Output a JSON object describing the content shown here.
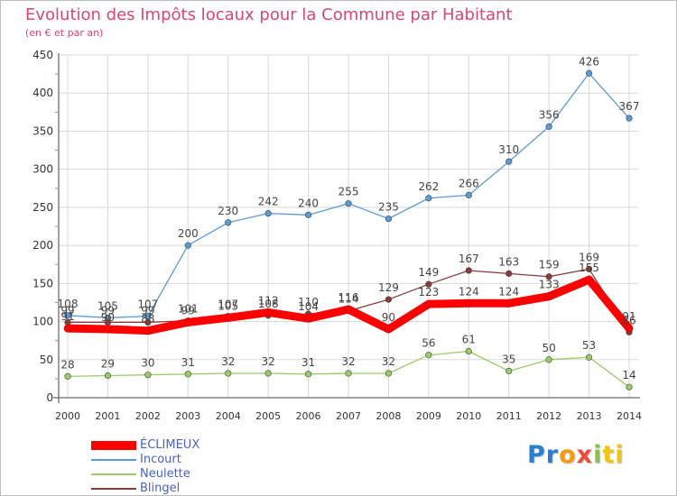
{
  "chart_data": {
    "type": "line",
    "title": "Evolution des Impôts locaux pour la Commune par Habitant",
    "subtitle": "(en € et par an)",
    "xlabel": "",
    "ylabel": "",
    "x": [
      "2000",
      "2001",
      "2002",
      "2003",
      "2004",
      "2005",
      "2006",
      "2007",
      "2008",
      "2009",
      "2010",
      "2011",
      "2012",
      "2013",
      "2014"
    ],
    "ylim": [
      0,
      450
    ],
    "yticks": [
      "0",
      "50",
      "100",
      "150",
      "200",
      "250",
      "300",
      "350",
      "400",
      "450"
    ],
    "grid": true,
    "legend_placement": "bottom-left",
    "series": [
      {
        "name": "ÉCLIMEUX",
        "color": "#ff0000",
        "values": [
          91,
          90,
          88,
          99,
          105,
          112,
          104,
          116,
          90,
          123,
          124,
          124,
          133,
          155,
          91
        ],
        "labels": [
          "91",
          "90",
          "88",
          "99",
          "105",
          "112",
          "104",
          "116",
          "90",
          "123",
          "124",
          "124",
          "133",
          "155",
          "91"
        ]
      },
      {
        "name": "Incourt",
        "color": "#5b9bd5",
        "values": [
          108,
          105,
          107,
          200,
          230,
          242,
          240,
          255,
          235,
          262,
          266,
          310,
          356,
          426,
          367
        ],
        "labels": [
          "108",
          "105",
          "107",
          "200",
          "230",
          "242",
          "240",
          "255",
          "235",
          "262",
          "266",
          "310",
          "356",
          "426",
          "367"
        ]
      },
      {
        "name": "Neulette",
        "color": "#99cc66",
        "values": [
          28,
          29,
          30,
          31,
          32,
          32,
          31,
          32,
          32,
          56,
          61,
          35,
          50,
          53,
          14
        ],
        "labels": [
          "28",
          "29",
          "30",
          "31",
          "32",
          "32",
          "31",
          "32",
          "32",
          "56",
          "61",
          "35",
          "50",
          "53",
          "14"
        ]
      },
      {
        "name": "Blingel",
        "color": "#8b3a3a",
        "values": [
          99,
          99,
          99,
          101,
          107,
          108,
          110,
          114,
          129,
          149,
          167,
          163,
          159,
          169,
          86
        ],
        "labels": [
          "99",
          "99",
          "99",
          "101",
          "107",
          "108",
          "110",
          "114",
          "129",
          "149",
          "167",
          "163",
          "159",
          "169",
          "86"
        ]
      }
    ]
  },
  "logo": {
    "parts": [
      {
        "text": "Pr",
        "color": "#2a7fd0"
      },
      {
        "text": "o",
        "color": "#f39c12"
      },
      {
        "text": "x",
        "color": "#e74c3c"
      },
      {
        "text": "i",
        "color": "#8bc34a"
      },
      {
        "text": "ti",
        "color": "#f1c40f"
      }
    ]
  }
}
